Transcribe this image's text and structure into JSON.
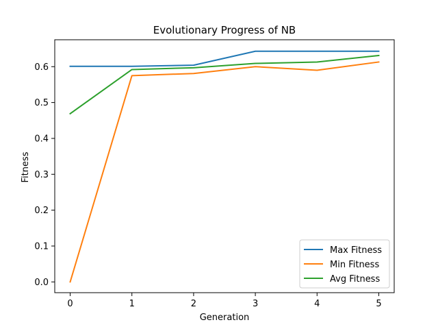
{
  "chart_data": {
    "type": "line",
    "title": "Evolutionary Progress of NB",
    "xlabel": "Generation",
    "ylabel": "Fitness",
    "x": [
      0,
      1,
      2,
      3,
      4,
      5
    ],
    "xticks": [
      "0",
      "1",
      "2",
      "3",
      "4",
      "5"
    ],
    "yticks": [
      "0.0",
      "0.1",
      "0.2",
      "0.3",
      "0.4",
      "0.5",
      "0.6"
    ],
    "xlim": [
      -0.25,
      5.25
    ],
    "ylim": [
      -0.03,
      0.675
    ],
    "grid": false,
    "legend_position": "lower-right",
    "series": [
      {
        "name": "Max Fitness",
        "color": "#1f77b4",
        "values": [
          0.601,
          0.601,
          0.604,
          0.643,
          0.643,
          0.643
        ]
      },
      {
        "name": "Min Fitness",
        "color": "#ff7f0e",
        "values": [
          0.0,
          0.575,
          0.581,
          0.6,
          0.59,
          0.613
        ]
      },
      {
        "name": "Avg Fitness",
        "color": "#2ca02c",
        "values": [
          0.469,
          0.592,
          0.597,
          0.609,
          0.613,
          0.631
        ]
      }
    ]
  }
}
